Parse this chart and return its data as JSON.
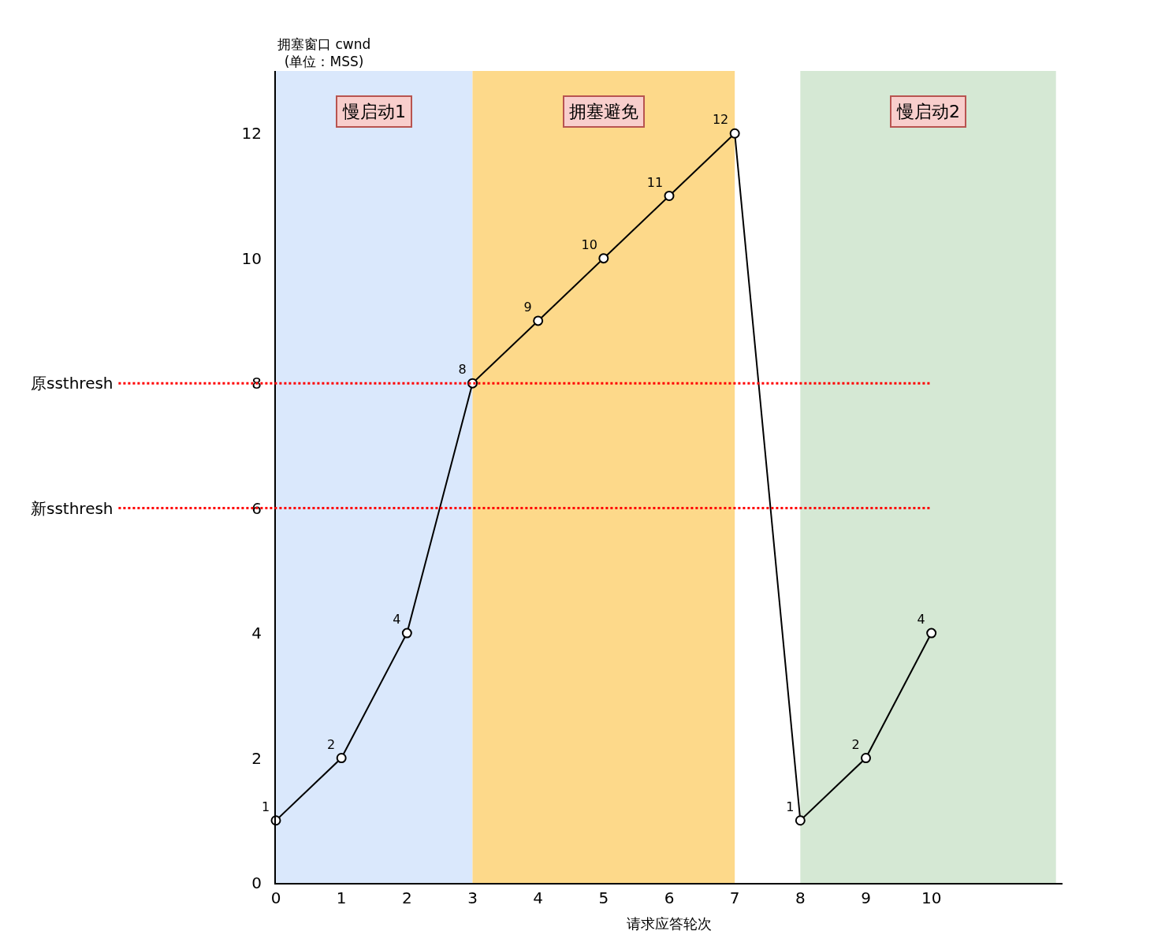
{
  "chart_data": {
    "type": "line",
    "xlabel": "请求应答轮次",
    "ylabel": "拥塞窗口 cwnd\n(单位：MSS)",
    "x": [
      0,
      1,
      2,
      3,
      4,
      5,
      6,
      7,
      8,
      9,
      10
    ],
    "series": [
      {
        "color": "#000000",
        "values": [
          1,
          2,
          4,
          8,
          9,
          10,
          11,
          12,
          1,
          2,
          4
        ]
      }
    ],
    "data_labels": true,
    "marker": "circle",
    "line_style": "solid",
    "xlim": [
      0,
      12
    ],
    "xticks": [
      0,
      1,
      2,
      3,
      4,
      5,
      6,
      7,
      8,
      9,
      10
    ],
    "ylim": [
      0,
      13
    ],
    "yticks": [
      0,
      2,
      4,
      6,
      8,
      10,
      12
    ],
    "ref_lines": [
      {
        "axis": "y",
        "value": 8,
        "label": "原ssthresh",
        "color": "#ff0000",
        "line_style": "dotted"
      },
      {
        "axis": "y",
        "value": 6,
        "label": "新ssthresh",
        "color": "#ff0000",
        "line_style": "dotted"
      }
    ],
    "bands": [
      {
        "axis": "x",
        "from": 0,
        "to": 3,
        "label": "慢启动1",
        "color": "#dae8fc"
      },
      {
        "axis": "x",
        "from": 3,
        "to": 7,
        "label": "拥塞避免",
        "color": "#fdd98a"
      },
      {
        "axis": "x",
        "from": 8,
        "to": 11.9,
        "label": "慢启动2",
        "color": "#d5e8d4"
      }
    ],
    "grid": false,
    "legend": false
  }
}
